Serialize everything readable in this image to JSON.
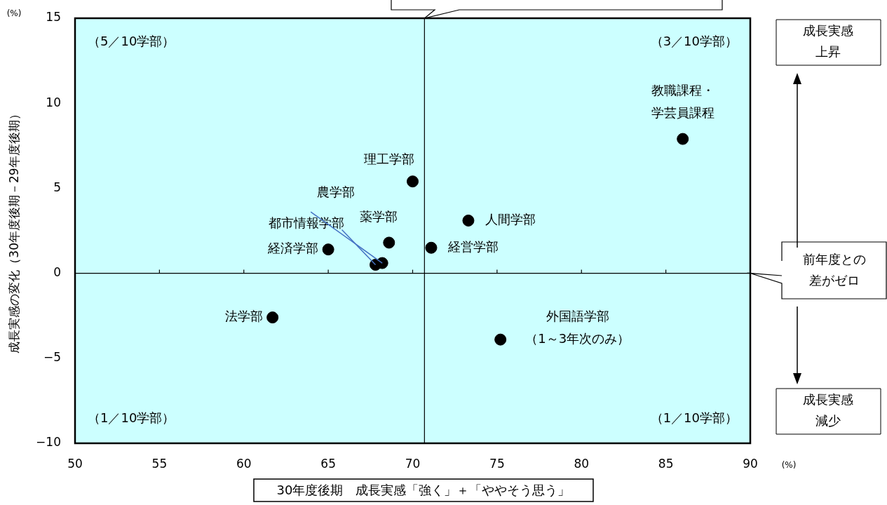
{
  "chart_data": {
    "type": "scatter",
    "xlabel": "30年度後期　成長実感「強く」＋「ややそう思う」",
    "ylabel": "成長実感の変化（30年度後期－29年度後期）",
    "x": [
      86.0,
      70.0,
      73.3,
      68.6,
      71.1,
      65.0,
      67.8,
      68.2,
      61.7,
      75.2
    ],
    "series": [
      {
        "color": "#000000",
        "values": [
          7.9,
          5.4,
          3.1,
          1.8,
          1.5,
          1.4,
          0.5,
          0.6,
          -2.6,
          -3.9
        ]
      }
    ],
    "xlim": [
      50,
      90
    ],
    "xticks": [
      50,
      55,
      60,
      65,
      70,
      75,
      80,
      85,
      90
    ],
    "ylim": [
      -10,
      15
    ],
    "yticks": [
      {
        "value": -10,
        "label": "−10"
      },
      {
        "value": -5,
        "label": "−5"
      },
      0,
      5,
      10,
      15
    ],
    "grid": false,
    "legend": false,
    "marker": "circle",
    "ref_lines": [
      {
        "axis": "x",
        "value": 70.7,
        "label": null,
        "color": "#000000"
      },
      {
        "axis": "y",
        "value": 0,
        "label": "前年度との差がゼロ",
        "color": "#000000"
      }
    ],
    "annotations": [
      {
        "text": "教職課程・学芸員課程",
        "x": 86.0,
        "y": 7.9
      },
      {
        "text": "理工学部",
        "x": 70.0,
        "y": 5.4
      },
      {
        "text": "人間学部",
        "x": 73.3,
        "y": 3.1
      },
      {
        "text": "薬学部",
        "x": 68.6,
        "y": 1.8
      },
      {
        "text": "経営学部",
        "x": 71.1,
        "y": 1.5
      },
      {
        "text": "経済学部",
        "x": 65.0,
        "y": 1.4
      },
      {
        "text": "都市情報学部",
        "x": 67.8,
        "y": 0.5
      },
      {
        "text": "農学部",
        "x": 68.2,
        "y": 0.6
      },
      {
        "text": "法学部",
        "x": 61.7,
        "y": -2.6
      },
      {
        "text": "外国語学部（1～3年次のみ）",
        "x": 75.2,
        "y": -3.9
      },
      "（5／10学部）",
      "（3／10学部）",
      "（1／10学部）",
      "（1／10学部）",
      "成長実感上昇",
      "成長実感減少",
      "(%)",
      "(%)"
    ]
  }
}
